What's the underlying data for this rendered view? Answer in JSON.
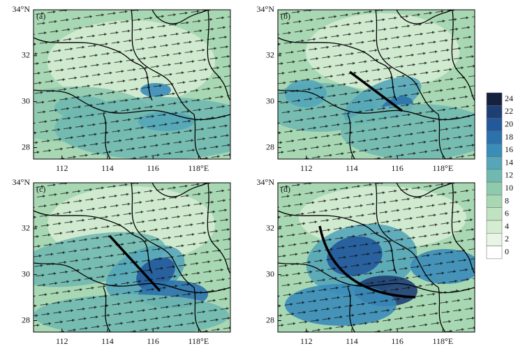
{
  "panels": [
    {
      "label": "(a)"
    },
    {
      "label": "(b)"
    },
    {
      "label": "(c)"
    },
    {
      "label": "(d)"
    }
  ],
  "lat_range": [
    27.5,
    34
  ],
  "lon_range": [
    110.75,
    119.4
  ],
  "lat_ticks": [
    28,
    30,
    32,
    {
      "value": 34,
      "label": "34°N"
    }
  ],
  "lon_ticks": [
    112,
    114,
    116,
    {
      "value": 118,
      "label": "118°E"
    }
  ],
  "colorbar": {
    "levels": [
      24,
      22,
      20,
      18,
      16,
      14,
      12,
      10,
      8,
      6,
      4,
      2,
      0
    ],
    "colors": [
      "#16213f",
      "#1d3f74",
      "#22599a",
      "#2b72ad",
      "#3a8cb9",
      "#55a6b8",
      "#70b9b0",
      "#8ecaae",
      "#a8d8b3",
      "#bfe2c0",
      "#d4ecd2",
      "#e8f5e5",
      "#ffffff"
    ]
  }
}
